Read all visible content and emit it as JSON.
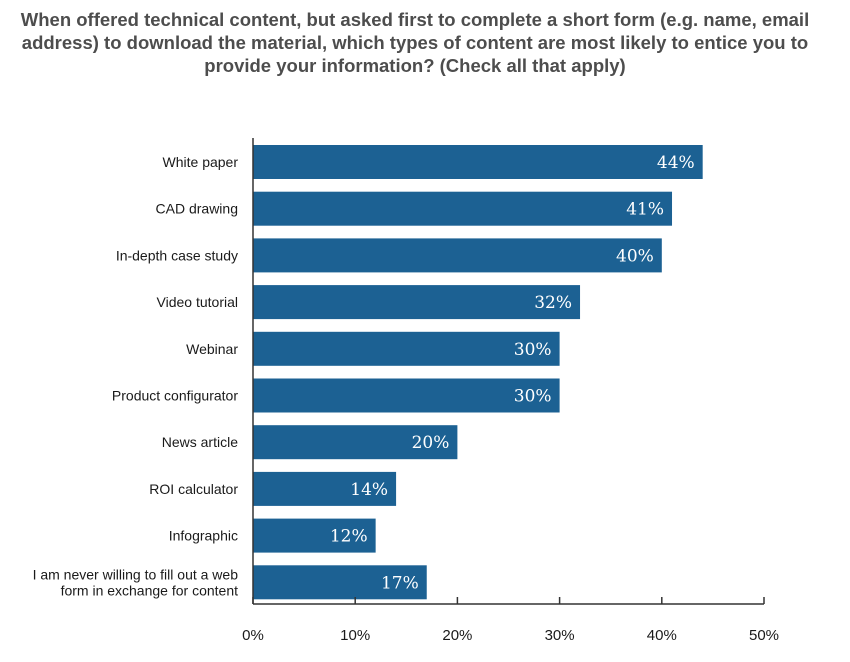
{
  "chart_data": {
    "type": "bar",
    "orientation": "horizontal",
    "title": "When offered technical content, but asked first to complete a short form (e.g. name, email address) to download the material, which types of content are most likely to entice you to provide your information? (Check all that apply)",
    "categories": [
      "White paper",
      "CAD drawing",
      "In-depth case study",
      "Video tutorial",
      "Webinar",
      "Product configurator",
      "News article",
      "ROI calculator",
      "Infographic",
      "I am never willing to fill out a web form in exchange for content"
    ],
    "category_lines": [
      [
        "White paper"
      ],
      [
        "CAD drawing"
      ],
      [
        "In-depth case study"
      ],
      [
        "Video tutorial"
      ],
      [
        "Webinar"
      ],
      [
        "Product configurator"
      ],
      [
        "News article"
      ],
      [
        "ROI calculator"
      ],
      [
        "Infographic"
      ],
      [
        "I am never willing to fill out a web",
        "form in exchange for content"
      ]
    ],
    "values": [
      44,
      41,
      40,
      32,
      30,
      30,
      20,
      14,
      12,
      17
    ],
    "value_labels": [
      "44%",
      "41%",
      "40%",
      "32%",
      "30%",
      "30%",
      "20%",
      "14%",
      "12%",
      "17%"
    ],
    "xticks": [
      0,
      10,
      20,
      30,
      40,
      50
    ],
    "xtick_labels": [
      "0%",
      "10%",
      "20%",
      "30%",
      "40%",
      "50%"
    ],
    "xlim": [
      0,
      50
    ],
    "bar_color": "#1c6193",
    "grid": false,
    "legend": "none"
  }
}
